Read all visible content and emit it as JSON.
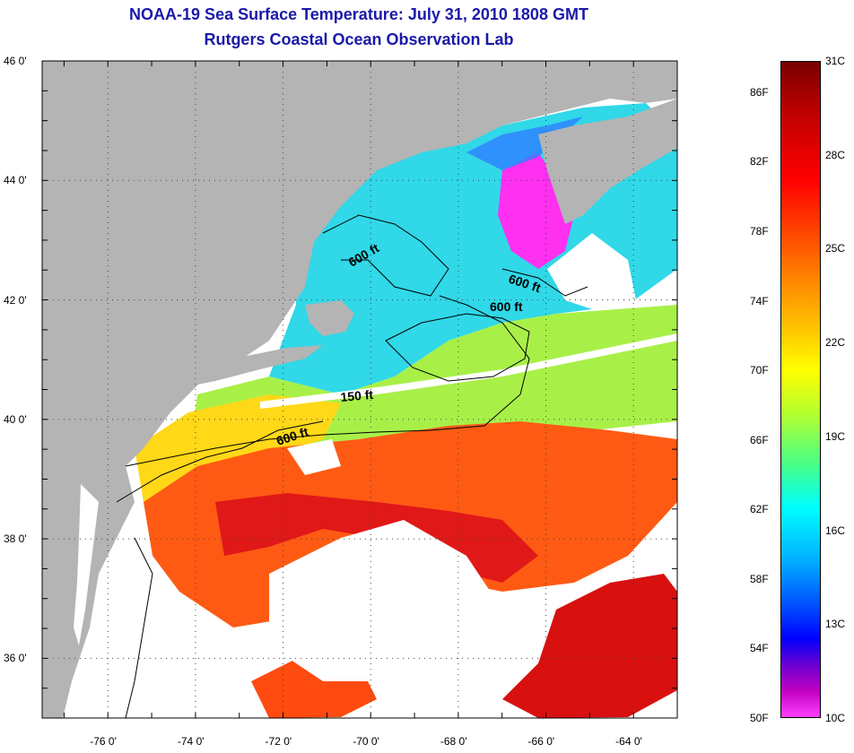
{
  "title": "NOAA-19 Sea Surface Temperature:  July 31, 2010 1808 GMT",
  "subtitle": "Rutgers Coastal Ocean Observation Lab",
  "lat_labels": [
    "46 0'",
    "44 0'",
    "42 0'",
    "40 0'",
    "38 0'",
    "36 0'"
  ],
  "lon_labels": [
    "-76 0'",
    "-74 0'",
    "-72 0'",
    "-70 0'",
    "-68 0'",
    "-66 0'",
    "-64 0'"
  ],
  "lat_values": [
    46,
    44,
    42,
    40,
    38,
    36
  ],
  "lon_values": [
    -76,
    -74,
    -72,
    -70,
    -68,
    -66,
    -64
  ],
  "map_extent": {
    "lon_min": -77.5,
    "lon_max": -63,
    "lat_min": 35,
    "lat_max": 46
  },
  "contour_labels": [
    "600 ft",
    "600 ft",
    "600 ft",
    "150 ft",
    "600 ft"
  ],
  "colorbar": {
    "fahrenheit_labels": [
      "86F",
      "82F",
      "78F",
      "74F",
      "70F",
      "66F",
      "62F",
      "58F",
      "54F",
      "50F"
    ],
    "fahrenheit_values": [
      86,
      82,
      78,
      74,
      70,
      66,
      62,
      58,
      54,
      50
    ],
    "celsius_labels": [
      "31C",
      "28C",
      "25C",
      "22C",
      "19C",
      "16C",
      "13C",
      "10C"
    ],
    "celsius_values": [
      31,
      28,
      25,
      22,
      19,
      16,
      13,
      10
    ],
    "min_f": 50,
    "max_f": 87.8
  },
  "colors": {
    "title": "#1a1aa8",
    "land": "#b4b4b4",
    "cloud": "#ffffff",
    "hot": "#e01010",
    "warm": "#ff7a10",
    "mild": "#c8f040",
    "cool": "#20d0e0",
    "cold": "#ff20ff"
  }
}
